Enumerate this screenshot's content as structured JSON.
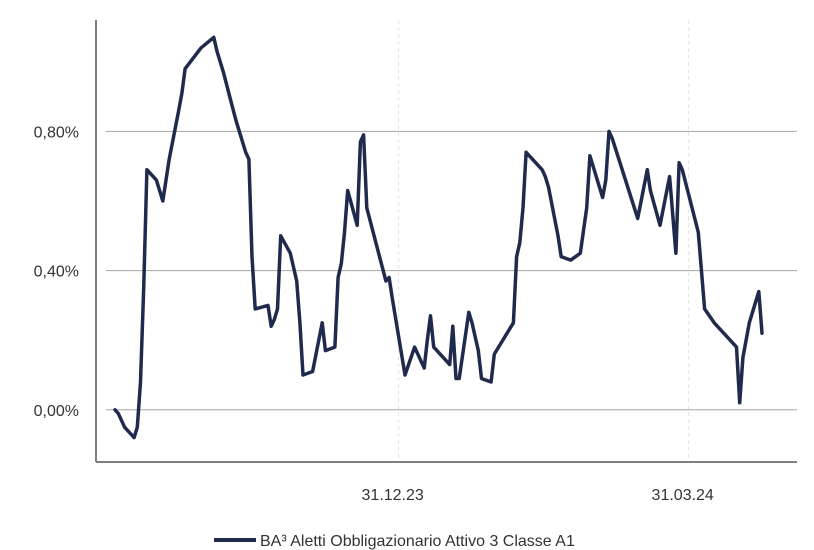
{
  "chart_data": {
    "type": "line",
    "xlabel": "",
    "ylabel": "",
    "x_tick_labels": [
      "31.12.23",
      "31.03.24"
    ],
    "y_tick_labels": [
      "0,00%",
      "0,40%",
      "0,80%"
    ],
    "y_ticks": [
      0.0,
      0.4,
      0.8
    ],
    "ylim": [
      -0.15,
      1.12
    ],
    "grid": {
      "horizontal": true,
      "vertical_dashed": true
    },
    "legend_position": "bottom",
    "series": [
      {
        "name": "BA³ Aletti Obbligazionario Attivo 3 Classe A1",
        "color": "#1f2a4d",
        "points": [
          [
            "2023-10-03",
            0.0
          ],
          [
            "2023-10-04",
            -0.01
          ],
          [
            "2023-10-05",
            -0.03
          ],
          [
            "2023-10-06",
            -0.05
          ],
          [
            "2023-10-09",
            -0.08
          ],
          [
            "2023-10-10",
            -0.05
          ],
          [
            "2023-10-11",
            0.08
          ],
          [
            "2023-10-12",
            0.35
          ],
          [
            "2023-10-13",
            0.69
          ],
          [
            "2023-10-16",
            0.66
          ],
          [
            "2023-10-17",
            0.63
          ],
          [
            "2023-10-18",
            0.6
          ],
          [
            "2023-10-20",
            0.72
          ],
          [
            "2023-10-23",
            0.86
          ],
          [
            "2023-10-24",
            0.91
          ],
          [
            "2023-10-25",
            0.98
          ],
          [
            "2023-10-30",
            1.04
          ],
          [
            "2023-11-03",
            1.07
          ],
          [
            "2023-11-04",
            1.03
          ],
          [
            "2023-11-06",
            0.97
          ],
          [
            "2023-11-08",
            0.9
          ],
          [
            "2023-11-10",
            0.83
          ],
          [
            "2023-11-13",
            0.74
          ],
          [
            "2023-11-14",
            0.72
          ],
          [
            "2023-11-15",
            0.44
          ],
          [
            "2023-11-16",
            0.29
          ],
          [
            "2023-11-20",
            0.3
          ],
          [
            "2023-11-21",
            0.24
          ],
          [
            "2023-11-22",
            0.26
          ],
          [
            "2023-11-23",
            0.29
          ],
          [
            "2023-11-24",
            0.5
          ],
          [
            "2023-11-27",
            0.45
          ],
          [
            "2023-11-28",
            0.41
          ],
          [
            "2023-11-29",
            0.37
          ],
          [
            "2023-11-30",
            0.25
          ],
          [
            "2023-12-01",
            0.1
          ],
          [
            "2023-12-04",
            0.11
          ],
          [
            "2023-12-07",
            0.25
          ],
          [
            "2023-12-08",
            0.17
          ],
          [
            "2023-12-11",
            0.18
          ],
          [
            "2023-12-12",
            0.38
          ],
          [
            "2023-12-13",
            0.42
          ],
          [
            "2023-12-14",
            0.51
          ],
          [
            "2023-12-15",
            0.63
          ],
          [
            "2023-12-18",
            0.53
          ],
          [
            "2023-12-19",
            0.77
          ],
          [
            "2023-12-20",
            0.79
          ],
          [
            "2023-12-21",
            0.58
          ],
          [
            "2023-12-27",
            0.37
          ],
          [
            "2023-12-28",
            0.38
          ],
          [
            "2023-12-29",
            0.32
          ],
          [
            "2024-01-02",
            0.1
          ],
          [
            "2024-01-05",
            0.18
          ],
          [
            "2024-01-08",
            0.12
          ],
          [
            "2024-01-09",
            0.2
          ],
          [
            "2024-01-10",
            0.27
          ],
          [
            "2024-01-11",
            0.18
          ],
          [
            "2024-01-16",
            0.13
          ],
          [
            "2024-01-17",
            0.24
          ],
          [
            "2024-01-18",
            0.09
          ],
          [
            "2024-01-19",
            0.09
          ],
          [
            "2024-01-22",
            0.28
          ],
          [
            "2024-01-23",
            0.25
          ],
          [
            "2024-01-25",
            0.17
          ],
          [
            "2024-01-26",
            0.09
          ],
          [
            "2024-01-29",
            0.08
          ],
          [
            "2024-01-30",
            0.16
          ],
          [
            "2024-02-05",
            0.25
          ],
          [
            "2024-02-06",
            0.44
          ],
          [
            "2024-02-07",
            0.48
          ],
          [
            "2024-02-08",
            0.58
          ],
          [
            "2024-02-09",
            0.74
          ],
          [
            "2024-02-14",
            0.69
          ],
          [
            "2024-02-15",
            0.67
          ],
          [
            "2024-02-16",
            0.64
          ],
          [
            "2024-02-19",
            0.5
          ],
          [
            "2024-02-20",
            0.44
          ],
          [
            "2024-02-23",
            0.43
          ],
          [
            "2024-02-26",
            0.45
          ],
          [
            "2024-02-28",
            0.58
          ],
          [
            "2024-02-29",
            0.73
          ],
          [
            "2024-03-01",
            0.7
          ],
          [
            "2024-03-04",
            0.61
          ],
          [
            "2024-03-05",
            0.66
          ],
          [
            "2024-03-06",
            0.8
          ],
          [
            "2024-03-07",
            0.78
          ],
          [
            "2024-03-15",
            0.55
          ],
          [
            "2024-03-18",
            0.69
          ],
          [
            "2024-03-19",
            0.63
          ],
          [
            "2024-03-22",
            0.53
          ],
          [
            "2024-03-25",
            0.67
          ],
          [
            "2024-03-27",
            0.45
          ],
          [
            "2024-03-28",
            0.71
          ],
          [
            "2024-03-29",
            0.69
          ],
          [
            "2024-04-03",
            0.51
          ],
          [
            "2024-04-05",
            0.29
          ],
          [
            "2024-04-08",
            0.25
          ],
          [
            "2024-04-15",
            0.18
          ],
          [
            "2024-04-16",
            0.02
          ],
          [
            "2024-04-17",
            0.15
          ],
          [
            "2024-04-19",
            0.25
          ],
          [
            "2024-04-22",
            0.34
          ],
          [
            "2024-04-23",
            0.22
          ]
        ]
      }
    ]
  }
}
